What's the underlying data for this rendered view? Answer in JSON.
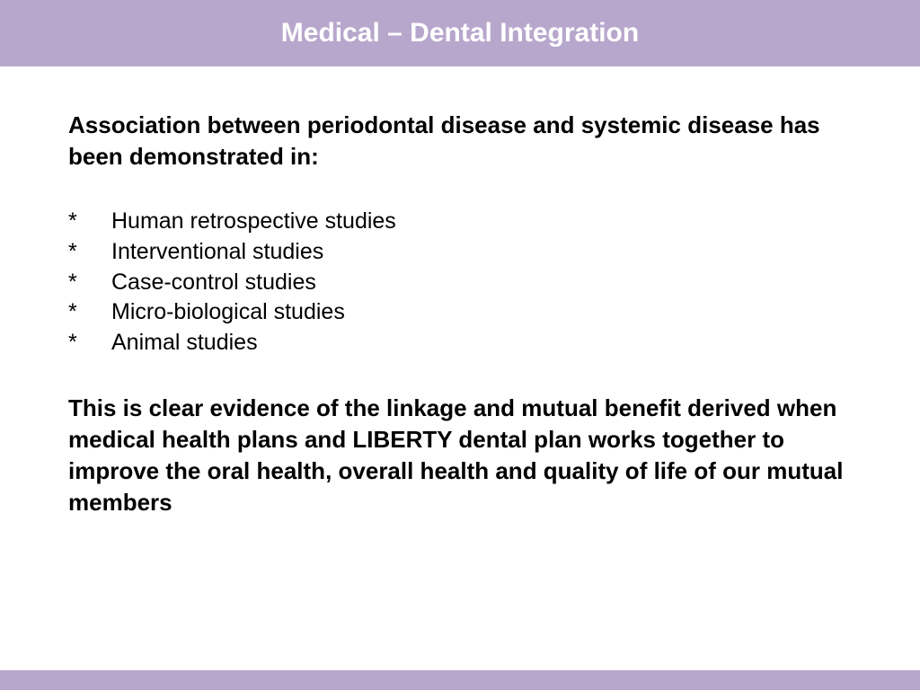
{
  "header": {
    "title": "Medical – Dental Integration"
  },
  "intro": "Association between periodontal disease and systemic disease has been demonstrated in:",
  "bullets": [
    "Human retrospective studies",
    "Interventional studies",
    "Case-control studies",
    "Micro-biological studies",
    "Animal studies"
  ],
  "bullet_marker": "*",
  "closing": "This is clear evidence of the linkage and mutual benefit derived when medical health plans and LIBERTY dental plan works together to improve the oral health, overall health and quality of life of our mutual members",
  "colors": {
    "header_bg": "#b7a7cc",
    "header_text": "#ffffff",
    "body_text": "#000000",
    "page_bg": "#ffffff"
  },
  "typography": {
    "title_fontsize": 30,
    "intro_fontsize": 26,
    "bullet_fontsize": 25,
    "closing_fontsize": 26
  }
}
